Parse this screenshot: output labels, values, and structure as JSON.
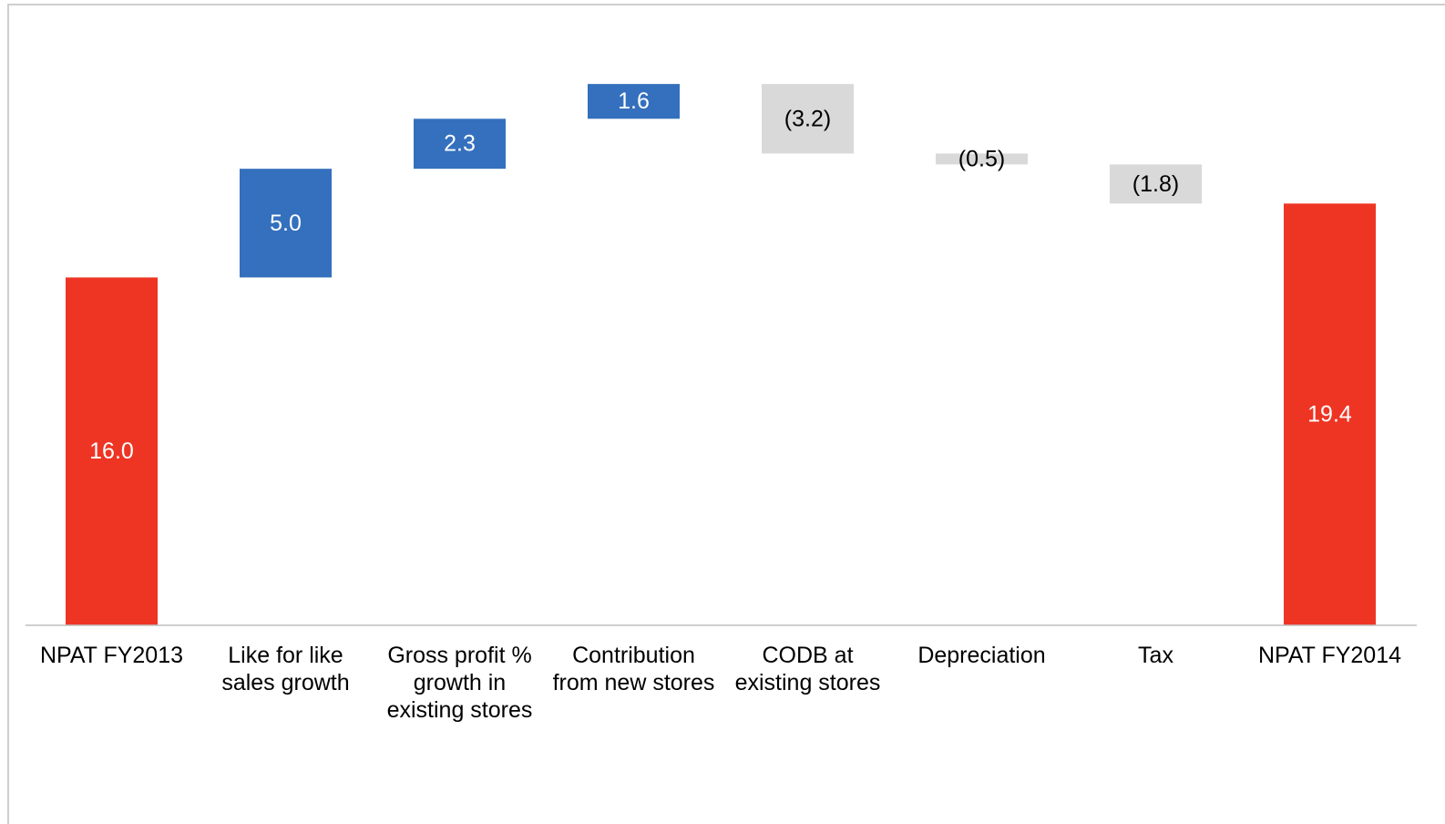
{
  "chart_data": {
    "type": "bar",
    "subtype": "waterfall",
    "categories": [
      [
        "NPAT FY2013"
      ],
      [
        "Like for like",
        "sales growth"
      ],
      [
        "Gross profit %",
        "growth in",
        "existing stores"
      ],
      [
        "Contribution",
        "from new stores"
      ],
      [
        "CODB at",
        "existing stores"
      ],
      [
        "Depreciation"
      ],
      [
        "Tax"
      ],
      [
        "NPAT FY2014"
      ]
    ],
    "values": [
      16.0,
      5.0,
      2.3,
      1.6,
      -3.2,
      -0.5,
      -1.8,
      19.4
    ],
    "kinds": [
      "total",
      "increase",
      "increase",
      "increase",
      "decrease",
      "decrease",
      "decrease",
      "total"
    ],
    "value_labels": [
      "16.0",
      "5.0",
      "2.3",
      "1.6",
      "(3.2)",
      "(0.5)",
      "(1.8)",
      "19.4"
    ],
    "ylim": [
      0,
      28.7
    ],
    "grid": false,
    "legend": "none",
    "colors": {
      "total": "#ee3524",
      "increase": "#3470bd",
      "decrease": "#d9d9d9",
      "total_label": "#ffffff",
      "increase_label": "#ffffff",
      "decrease_label": "#000000",
      "axis": "#bfbfbf"
    }
  }
}
